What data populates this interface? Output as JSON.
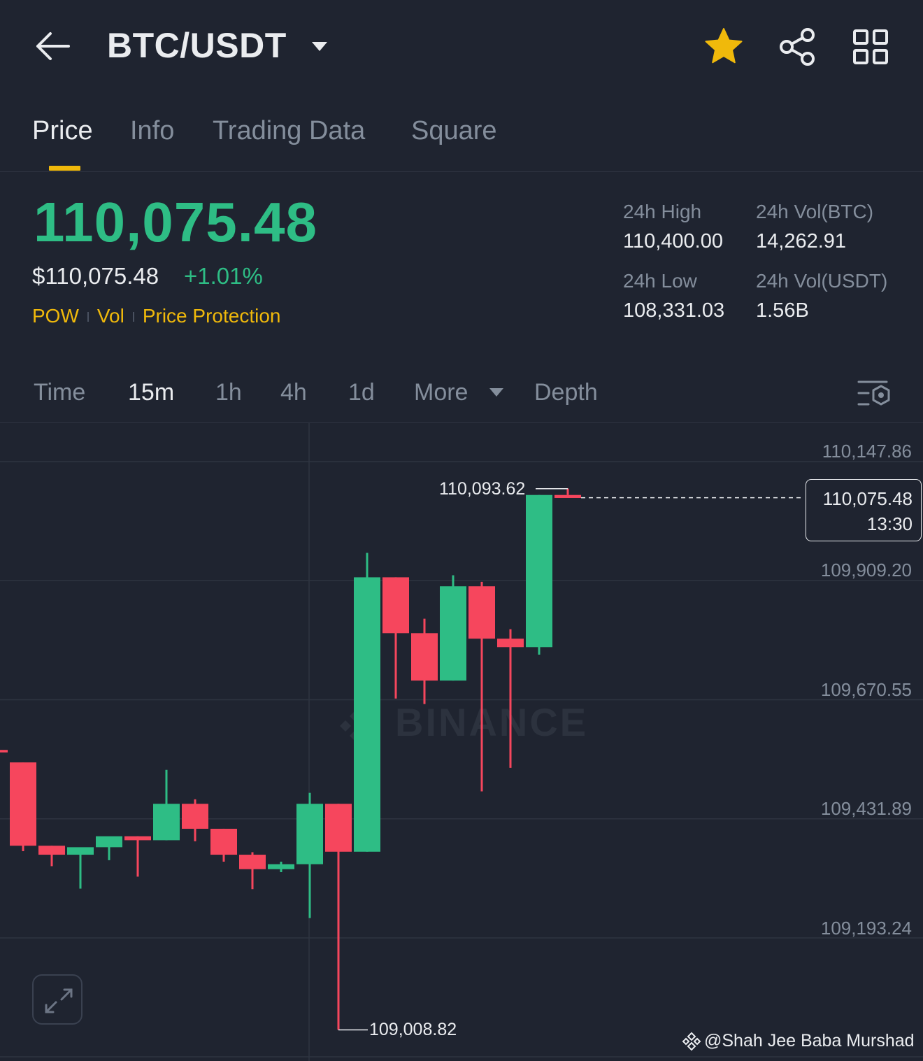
{
  "header": {
    "pair": "BTC/USDT",
    "icons": [
      "arrow-left-icon",
      "caret-down-icon",
      "star-icon",
      "share-icon",
      "grid-icon"
    ],
    "star_color": "#f0b90b"
  },
  "tabs": [
    {
      "label": "Price",
      "active": true
    },
    {
      "label": "Info",
      "active": false
    },
    {
      "label": "Trading Data",
      "active": false
    },
    {
      "label": "Square",
      "active": false
    }
  ],
  "summary": {
    "last_price": "110,075.48",
    "fiat_price": "$110,075.48",
    "change": "+1.01%",
    "tags": [
      "POW",
      "Vol",
      "Price Protection"
    ],
    "stats": {
      "high_label": "24h High",
      "high_value": "110,400.00",
      "vol_btc_label": "24h Vol(BTC)",
      "vol_btc_value": "14,262.91",
      "low_label": "24h Low",
      "low_value": "108,331.03",
      "vol_usdt_label": "24h Vol(USDT)",
      "vol_usdt_value": "1.56B"
    }
  },
  "intervals": {
    "items": [
      {
        "label": "Time",
        "active": false
      },
      {
        "label": "15m",
        "active": true
      },
      {
        "label": "1h",
        "active": false
      },
      {
        "label": "4h",
        "active": false
      },
      {
        "label": "1d",
        "active": false
      },
      {
        "label": "More",
        "active": false
      },
      {
        "label": "Depth",
        "active": false
      }
    ]
  },
  "chart": {
    "watermark": "BINANCE",
    "axis_labels": [
      "110,147.86",
      "109,909.20",
      "109,670.55",
      "109,431.89",
      "109,193.24"
    ],
    "high_marker": "110,093.62",
    "low_marker": "109,008.82",
    "current_price": "110,075.48",
    "current_time": "13:30",
    "credit": "@Shah Jee Baba Murshad"
  },
  "colors": {
    "up": "#2ebd85",
    "down": "#f6465d",
    "accent": "#f0b90b",
    "background": "#1f2430"
  },
  "chart_data": {
    "type": "candlestick",
    "interval": "15m",
    "series": [
      {
        "name": "BTC/USDT",
        "candles": [
          {
            "o": 109570,
            "h": 109570,
            "l": 109565,
            "c": 109565
          },
          {
            "o": 109545,
            "h": 109545,
            "l": 109367,
            "c": 109378
          },
          {
            "o": 109378,
            "h": 109378,
            "l": 109337,
            "c": 109360
          },
          {
            "o": 109360,
            "h": 109370,
            "l": 109292,
            "c": 109375
          },
          {
            "o": 109375,
            "h": 109394,
            "l": 109349,
            "c": 109397
          },
          {
            "o": 109397,
            "h": 109397,
            "l": 109316,
            "c": 109389
          },
          {
            "o": 109389,
            "h": 109530,
            "l": 109389,
            "c": 109462
          },
          {
            "o": 109462,
            "h": 109471,
            "l": 109387,
            "c": 109412
          },
          {
            "o": 109412,
            "h": 109412,
            "l": 109346,
            "c": 109360
          },
          {
            "o": 109360,
            "h": 109365,
            "l": 109291,
            "c": 109331
          },
          {
            "o": 109331,
            "h": 109346,
            "l": 109325,
            "c": 109341
          },
          {
            "o": 109341,
            "h": 109484,
            "l": 109233,
            "c": 109462
          },
          {
            "o": 109462,
            "h": 109462,
            "l": 109009,
            "c": 109366
          },
          {
            "o": 109366,
            "h": 109965,
            "l": 109366,
            "c": 109916
          },
          {
            "o": 109916,
            "h": 109916,
            "l": 109673,
            "c": 109804
          },
          {
            "o": 109804,
            "h": 109833,
            "l": 109662,
            "c": 109709
          },
          {
            "o": 109709,
            "h": 109920,
            "l": 109709,
            "c": 109898
          },
          {
            "o": 109898,
            "h": 109907,
            "l": 109487,
            "c": 109793
          },
          {
            "o": 109793,
            "h": 109812,
            "l": 109534,
            "c": 109776
          },
          {
            "o": 109776,
            "h": 110081,
            "l": 109761,
            "c": 110081
          },
          {
            "o": 110081,
            "h": 110094,
            "l": 110081,
            "c": 110075
          }
        ]
      }
    ],
    "y_ticks": [
      110147.86,
      109909.2,
      109670.55,
      109431.89,
      109193.24
    ],
    "high": 110093.62,
    "low": 109008.82,
    "last": 110075.48,
    "last_time": "13:30",
    "grid": true,
    "price_scale": "right"
  }
}
